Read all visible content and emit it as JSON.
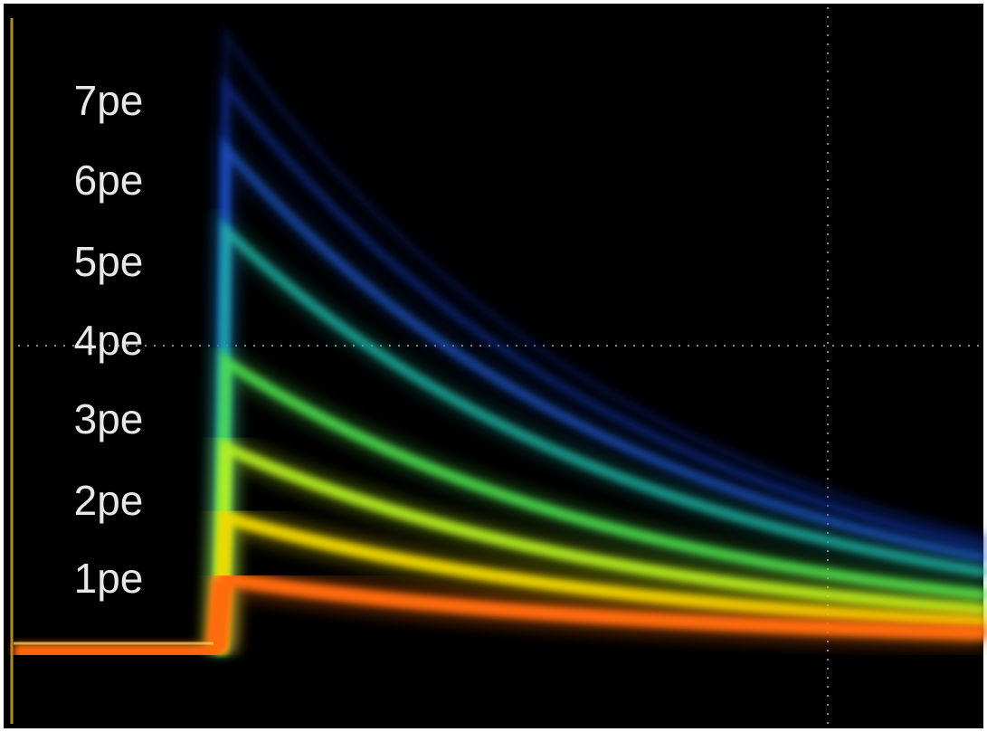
{
  "labels": [
    "7pe",
    "6pe",
    "5pe",
    "4pe",
    "3pe",
    "2pe",
    "1pe"
  ]
}
